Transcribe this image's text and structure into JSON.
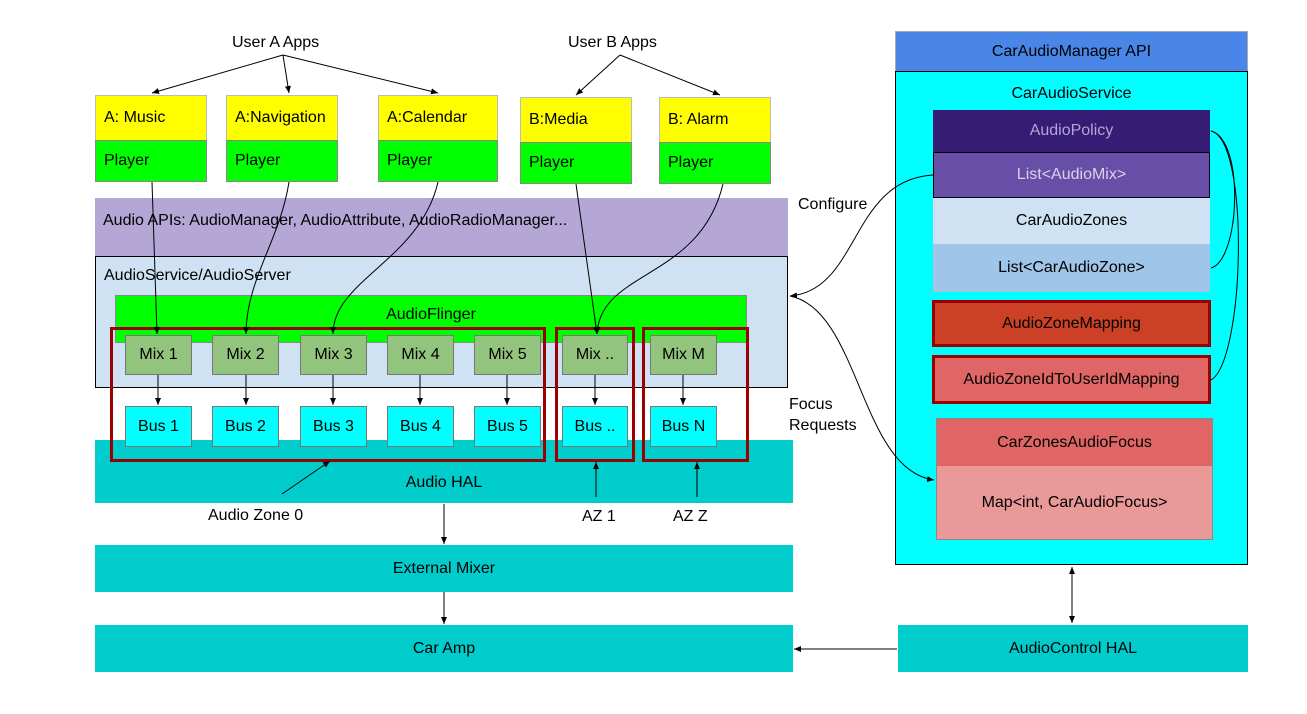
{
  "user_a": "User A Apps",
  "user_b": "User B Apps",
  "apps": [
    {
      "name": "A: Music",
      "player": "Player"
    },
    {
      "name": "A:Navigation",
      "player": "Player"
    },
    {
      "name": "A:Calendar",
      "player": "Player"
    },
    {
      "name": "B:Media",
      "player": "Player"
    },
    {
      "name": "B: Alarm",
      "player": "Player"
    }
  ],
  "audio_apis": "Audio APIs: AudioManager, AudioAttribute, AudioRadioManager...",
  "audio_service": "AudioService/AudioServer",
  "audio_flinger": "AudioFlinger",
  "mixes": [
    "Mix 1",
    "Mix 2",
    "Mix 3",
    "Mix 4",
    "Mix 5",
    "Mix ..",
    "Mix M"
  ],
  "buses": [
    "Bus 1",
    "Bus 2",
    "Bus 3",
    "Bus 4",
    "Bus 5",
    "Bus ..",
    "Bus N"
  ],
  "audio_hal": "Audio HAL",
  "zones": {
    "z0": "Audio Zone 0",
    "z1": "AZ 1",
    "zz": "AZ Z"
  },
  "external_mixer": "External Mixer",
  "car_amp": "Car Amp",
  "configure": "Configure",
  "focus_requests": [
    "Focus",
    "Requests"
  ],
  "right": {
    "api": "CarAudioManager API",
    "service": "CarAudioService",
    "audio_policy": "AudioPolicy",
    "audio_mix_list": "List<AudioMix>",
    "car_audio_zones": "CarAudioZones",
    "car_audio_zone_list": "List<CarAudioZone>",
    "zone_mapping": "AudioZoneMapping",
    "zone_user_mapping": "AudioZoneIdToUserIdMapping",
    "zones_focus": "CarZonesAudioFocus",
    "focus_map": "Map<int, CarAudioFocus>",
    "audio_control_hal": "AudioControl HAL"
  },
  "colors": {
    "yellow": "#ffff00",
    "green": "#00ff00",
    "mix": "#93c47d",
    "bus": "#00ffff",
    "hal": "#00cccc",
    "zone_frame": "#990000",
    "api_blue": "#4a86e8",
    "policy": "#351c75",
    "audiomix": "#674ea7"
  }
}
